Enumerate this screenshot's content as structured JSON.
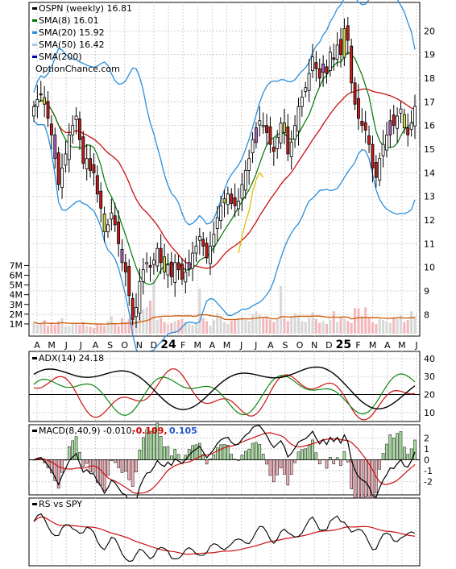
{
  "chart_data": [
    {
      "type": "candlestick",
      "panel": "price",
      "legend": [
        {
          "label": "OSPN (weekly) 16.81",
          "color": "#000000"
        },
        {
          "label": "SMA(8) 16.01",
          "color": "#007700"
        },
        {
          "label": "SMA(20) 15.92",
          "color": "#2a8fdc"
        },
        {
          "label": "SMA(50) 16.42",
          "color": "#a8c8f0"
        },
        {
          "label": "SMA(200)",
          "color": "#0000aa"
        }
      ],
      "watermark": "OptionChance.com",
      "ylim": [
        7.5,
        21
      ],
      "y_ticks": [
        "8",
        "9",
        "10",
        "11",
        "12",
        "13",
        "14",
        "15",
        "16",
        "17",
        "18",
        "19",
        "20"
      ],
      "volume_ticks": [
        "1M",
        "2M",
        "3M",
        "4M",
        "5M",
        "6M",
        "7M"
      ],
      "x_ticks": [
        "A",
        "M",
        "J",
        "J",
        "A",
        "S",
        "O",
        "N",
        "D",
        "24",
        "F",
        "M",
        "A",
        "M",
        "J",
        "J",
        "A",
        "S",
        "O",
        "N",
        "D",
        "25",
        "F",
        "M",
        "A",
        "M",
        "J"
      ],
      "close": [
        16.8,
        17.1,
        17.3,
        16.9,
        16.3,
        15.6,
        14.6,
        13.5,
        14.2,
        14.8,
        15.6,
        16.0,
        16.4,
        15.4,
        14.4,
        14.6,
        14.1,
        14.0,
        13.1,
        12.5,
        11.5,
        11.8,
        12.3,
        11.8,
        11.0,
        10.2,
        9.8,
        8.8,
        7.8,
        8.3,
        9.4,
        9.9,
        10.2,
        10.0,
        10.3,
        10.8,
        10.2,
        9.8,
        10.1,
        9.6,
        10.2,
        9.9,
        9.5,
        9.8,
        10.2,
        10.6,
        10.9,
        11.3,
        10.9,
        10.4,
        10.9,
        11.4,
        12.1,
        12.6,
        12.9,
        13.1,
        12.7,
        12.6,
        12.8,
        13.5,
        14.1,
        14.6,
        15.4,
        15.9,
        16.2,
        16.0,
        15.7,
        15.2,
        14.9,
        15.5,
        16.1,
        15.7,
        14.8,
        15.3,
        16.0,
        16.8,
        17.2,
        17.6,
        18.2,
        18.9,
        18.4,
        18.0,
        18.6,
        18.2,
        19.1,
        18.8,
        19.4,
        19.0,
        20.1,
        19.6,
        17.8,
        16.9,
        16.3,
        16.0,
        15.8,
        15.2,
        14.2,
        13.8,
        14.6,
        15.2,
        15.6,
        16.2,
        16.0,
        16.4,
        16.7,
        15.9,
        15.6,
        16.1,
        16.81
      ],
      "volume_millions": [
        1.2,
        0.9,
        1.0,
        1.4,
        0.8,
        1.1,
        0.9,
        1.3,
        1.6,
        0.7,
        0.8,
        1.0,
        1.1,
        0.9,
        1.2,
        0.8,
        0.7,
        0.6,
        1.0,
        0.9,
        0.8,
        1.3,
        1.8,
        1.1,
        0.8,
        1.6,
        1.2,
        1.5,
        1.9,
        1.3,
        2.3,
        2.5,
        2.7,
        3.4,
        5.6,
        1.4,
        1.6,
        1.2,
        1.0,
        1.1,
        1.3,
        1.4,
        1.5,
        1.2,
        1.0,
        0.9,
        1.1,
        4.6,
        1.6,
        1.3,
        0.8,
        1.4,
        2.1,
        1.8,
        1.2,
        1.0,
        1.3,
        1.5,
        1.6,
        1.7,
        1.4,
        1.3,
        2.0,
        2.3,
        1.9,
        1.6,
        1.7,
        1.4,
        1.2,
        1.5,
        4.9,
        1.6,
        1.3,
        1.8,
        2.1,
        1.8,
        1.3,
        1.2,
        1.6,
        2.2,
        1.5,
        1.1,
        1.3,
        1.0,
        1.4,
        2.3,
        1.2,
        1.7,
        1.5,
        1.3,
        1.1,
        2.6,
        2.6,
        1.8,
        2.7,
        1.6,
        1.2,
        1.0,
        1.5,
        1.4,
        1.3,
        1.1,
        1.7,
        1.5,
        1.9,
        1.2,
        1.4,
        2.3,
        1.8
      ]
    },
    {
      "type": "line",
      "panel": "adx",
      "label": "ADX(14) 24.18",
      "ylim": [
        5,
        44
      ],
      "y_ticks": [
        "10",
        "20",
        "30",
        "40"
      ]
    },
    {
      "type": "line",
      "panel": "macd",
      "label": "MACD(8,40,9) -0.010,",
      "values_text": [
        "-0.109,",
        "0.105"
      ],
      "value_colors": [
        "#cc0000",
        "#2255cc"
      ],
      "ylim": [
        -3.2,
        3.2
      ],
      "y_ticks": [
        "2",
        "1",
        "0",
        "-1",
        "-2"
      ]
    },
    {
      "type": "line",
      "panel": "rs",
      "label": "RS vs SPY"
    }
  ]
}
